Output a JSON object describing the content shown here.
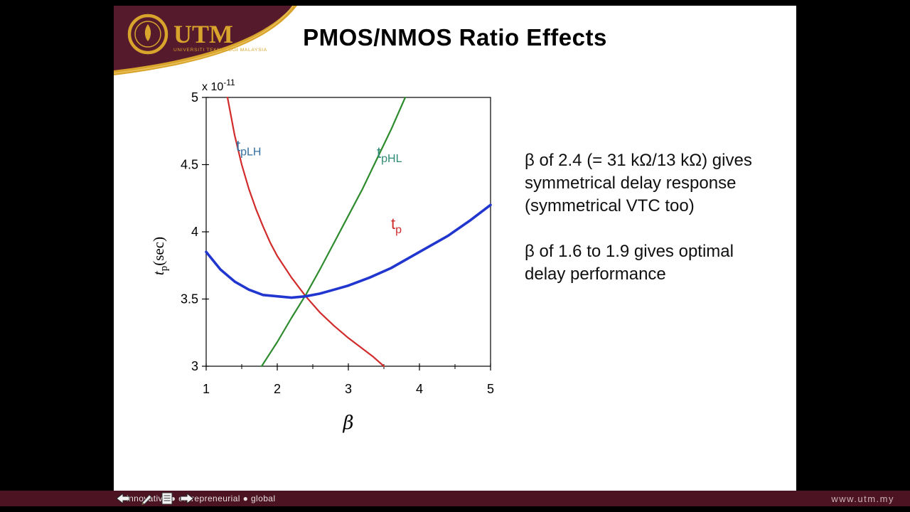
{
  "header": {
    "title": "PMOS/NMOS Ratio Effects",
    "logo": {
      "acronym": "UTM",
      "org_line": "UNIVERSITI TEKNOLOGI MALAYSIA"
    },
    "banner_colors": {
      "maroon": "#551a2b",
      "gold": "#d8a42c"
    }
  },
  "notes": [
    {
      "lines": [
        "β of 2.4 (= 31 kΩ/13 kΩ) gives",
        "symmetrical delay response",
        "(symmetrical VTC too)"
      ]
    },
    {
      "lines": [
        "β of 1.6 to 1.9 gives optimal",
        "delay performance"
      ]
    }
  ],
  "footer": {
    "tagline": "innovative ● entrepreneurial ● global",
    "url": "www.utm.my"
  },
  "chart_data": {
    "type": "line",
    "title": "",
    "xlabel": "β",
    "ylabel": {
      "base": "t",
      "sub": "p",
      "rest": "(sec)"
    },
    "y_multiplier": {
      "prefix": "x 10",
      "exp": "-11"
    },
    "xlim": [
      1,
      5
    ],
    "ylim": [
      3,
      5
    ],
    "xticks": [
      1,
      2,
      3,
      4,
      5
    ],
    "xminorticks": [
      1.5,
      2.5,
      3.5,
      4.5
    ],
    "yticks": [
      3,
      3.5,
      4,
      4.5,
      5
    ],
    "grid": false,
    "box": true,
    "series": [
      {
        "name": "tpLH",
        "color": "#d22b2b",
        "width": 2.2,
        "points": [
          [
            1.3,
            5.0
          ],
          [
            1.4,
            4.72
          ],
          [
            1.5,
            4.5
          ],
          [
            1.6,
            4.32
          ],
          [
            1.7,
            4.17
          ],
          [
            1.8,
            4.04
          ],
          [
            1.9,
            3.92
          ],
          [
            2.0,
            3.82
          ],
          [
            2.2,
            3.66
          ],
          [
            2.4,
            3.52
          ],
          [
            2.6,
            3.4
          ],
          [
            2.8,
            3.3
          ],
          [
            3.0,
            3.21
          ],
          [
            3.2,
            3.13
          ],
          [
            3.35,
            3.07
          ],
          [
            3.5,
            3.0
          ]
        ]
      },
      {
        "name": "tpHL",
        "color": "#2e8b2e",
        "width": 2.2,
        "points": [
          [
            1.78,
            3.0
          ],
          [
            2.0,
            3.18
          ],
          [
            2.2,
            3.36
          ],
          [
            2.4,
            3.53
          ],
          [
            2.6,
            3.72
          ],
          [
            2.8,
            3.92
          ],
          [
            3.0,
            4.12
          ],
          [
            3.2,
            4.32
          ],
          [
            3.4,
            4.54
          ],
          [
            3.6,
            4.76
          ],
          [
            3.8,
            5.0
          ]
        ]
      },
      {
        "name": "tp",
        "color": "#2036cf",
        "width": 3.6,
        "points": [
          [
            1.0,
            3.85
          ],
          [
            1.2,
            3.72
          ],
          [
            1.4,
            3.63
          ],
          [
            1.6,
            3.57
          ],
          [
            1.8,
            3.53
          ],
          [
            2.0,
            3.52
          ],
          [
            2.2,
            3.51
          ],
          [
            2.4,
            3.52
          ],
          [
            2.6,
            3.54
          ],
          [
            2.8,
            3.57
          ],
          [
            3.0,
            3.6
          ],
          [
            3.3,
            3.66
          ],
          [
            3.6,
            3.73
          ],
          [
            4.0,
            3.85
          ],
          [
            4.4,
            3.97
          ],
          [
            4.7,
            4.08
          ],
          [
            5.0,
            4.2
          ]
        ]
      }
    ],
    "curve_labels": [
      {
        "base": "t",
        "sub": "pLH",
        "color": "#336fa0",
        "x": 1.42,
        "y": 4.6
      },
      {
        "base": "t",
        "sub": "pHL",
        "color": "#2e8b74",
        "x": 3.4,
        "y": 4.55
      },
      {
        "base": "t",
        "sub": "p",
        "color": "#cf2b2b",
        "x": 3.6,
        "y": 4.02
      }
    ]
  }
}
